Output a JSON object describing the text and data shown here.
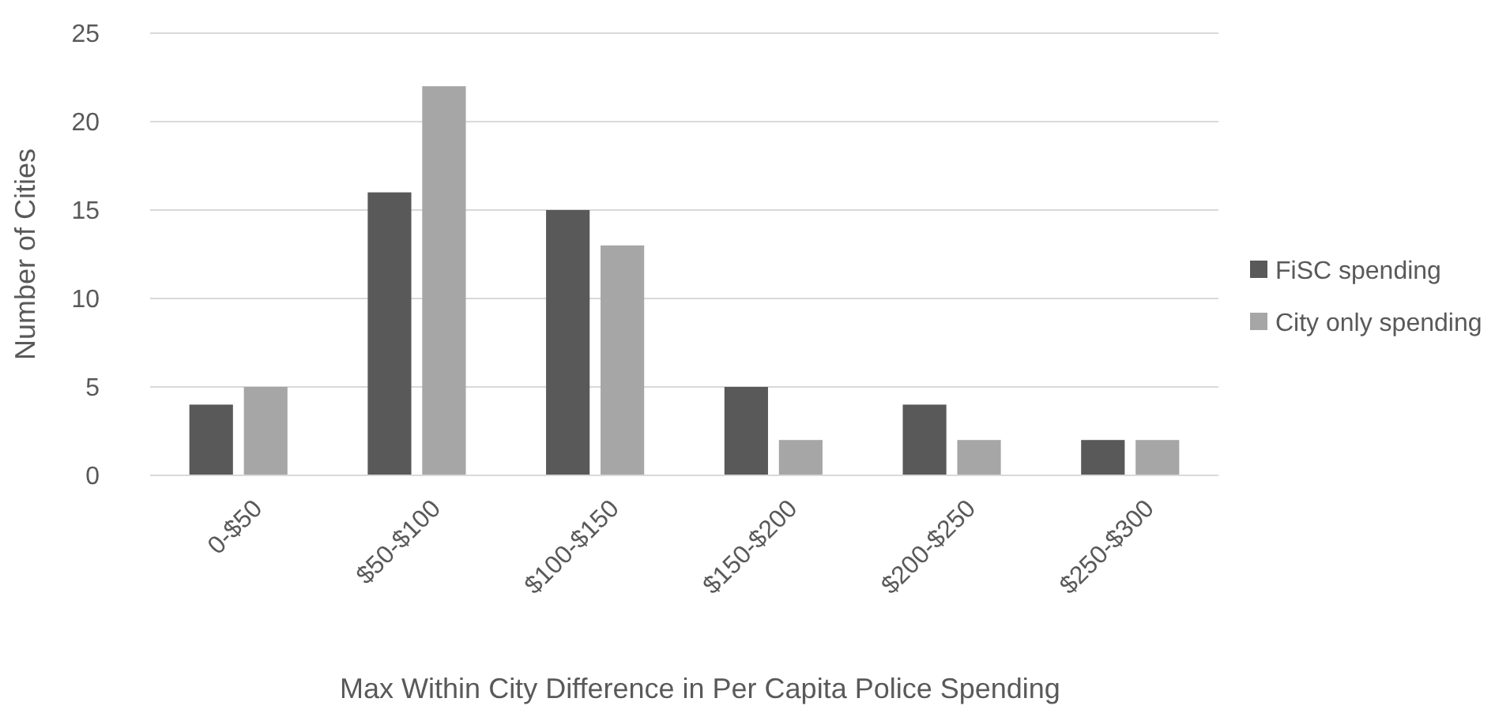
{
  "chart_data": {
    "type": "bar",
    "xlabel": "Max Within City Difference in Per Capita Police Spending",
    "ylabel": "Number of Cities",
    "categories": [
      "0-$50",
      "$50-$100",
      "$100-$150",
      "$150-$200",
      "$200-$250",
      "$250-$300"
    ],
    "series": [
      {
        "name": "FiSC spending",
        "color": "#595959",
        "values": [
          4,
          16,
          15,
          5,
          4,
          2
        ]
      },
      {
        "name": "City only spending",
        "color": "#a6a6a6",
        "values": [
          5,
          22,
          13,
          2,
          2,
          2
        ]
      }
    ],
    "ylim": [
      0,
      25
    ],
    "yticks": [
      0,
      5,
      10,
      15,
      20,
      25
    ],
    "grid": "y",
    "legend": "right"
  }
}
